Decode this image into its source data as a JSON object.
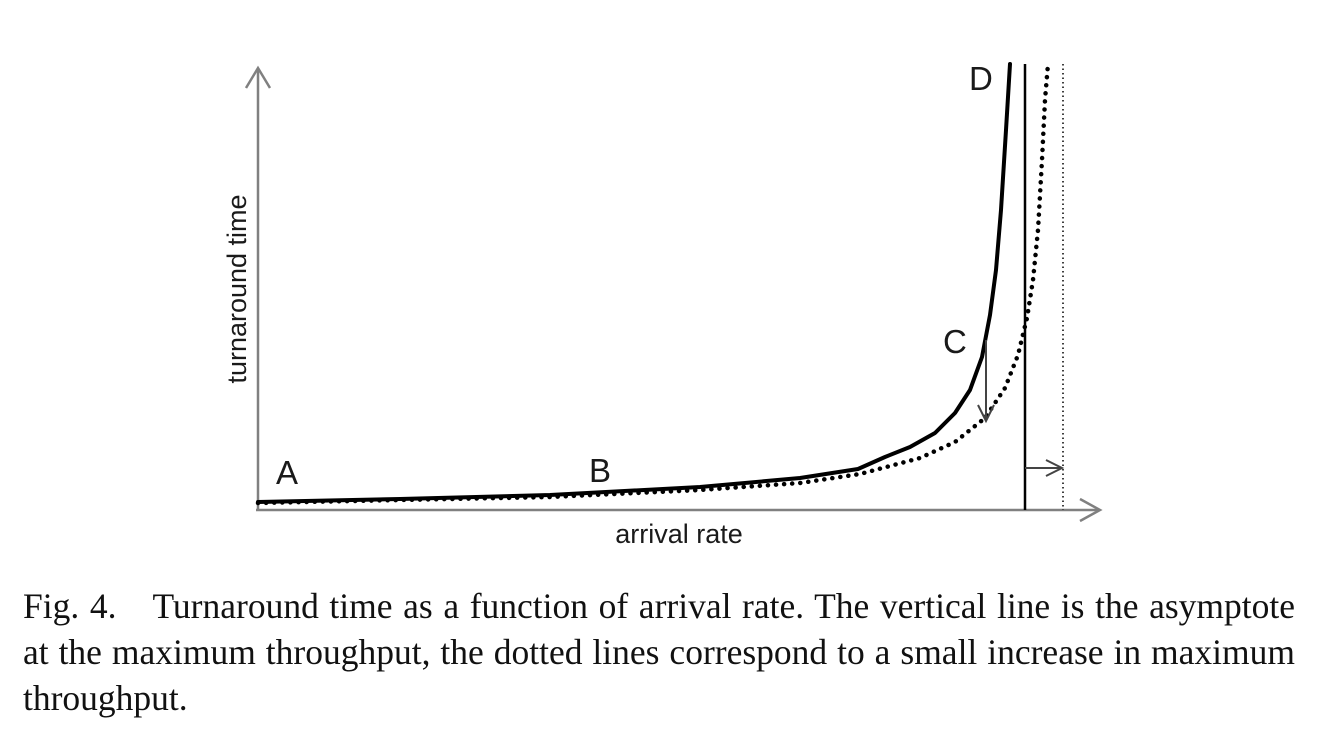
{
  "figure": {
    "axis_labels": {
      "x": "arrival rate",
      "y": "turnaround time"
    },
    "point_labels": {
      "a": "A",
      "b": "B",
      "c": "C",
      "d": "D"
    },
    "line_styles": {
      "original_curve": "solid",
      "improved_curve": "dotted",
      "original_asymptote": "solid",
      "improved_asymptote": "dotted"
    },
    "colors": {
      "curve": "#000000",
      "axis": "#808080",
      "arrow": "#444444",
      "text": "#1a1a1a"
    }
  },
  "caption": {
    "label": "Fig. 4.",
    "text": "Turnaround time as a function of arrival rate. The vertical line is the asymptote at the maximum throughput, the dotted lines correspond to a small increase in maximum throughput."
  }
}
